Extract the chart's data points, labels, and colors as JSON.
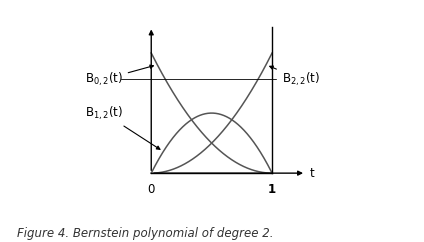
{
  "caption": "Figure 4. Bernstein polynomial of degree 2.",
  "caption_fontsize": 8.5,
  "curve_color": "#555555",
  "bg_color": "#ffffff",
  "labels": {
    "B02": "B$_{0, 2}$(t)",
    "B12": "B$_{1, 2}$(t)",
    "B22": "B$_{2, 2}$(t)"
  },
  "label_fontsize": 8.5,
  "axis_label": "t",
  "line_width": 1.1,
  "xlim": [
    -0.62,
    1.38
  ],
  "ylim": [
    -0.13,
    1.28
  ]
}
